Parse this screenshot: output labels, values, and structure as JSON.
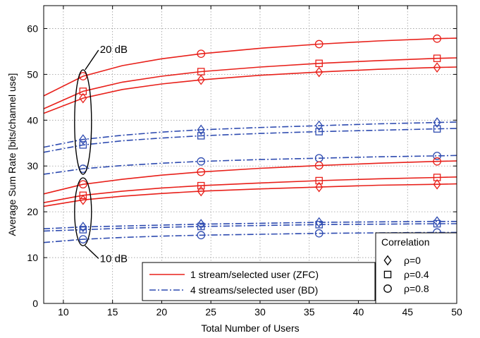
{
  "chart_data": {
    "type": "line",
    "title": "",
    "xlabel": "Total Number of Users",
    "ylabel": "Average Sum Rate [bits/channel use]",
    "xlim": [
      8,
      50
    ],
    "ylim": [
      0,
      65
    ],
    "xticks": [
      10,
      15,
      20,
      25,
      30,
      35,
      40,
      45,
      50
    ],
    "yticks": [
      0,
      10,
      20,
      30,
      40,
      50,
      60
    ],
    "grid": true,
    "colors": {
      "zfc": "#e8201a",
      "bd": "#2e4bb0"
    },
    "marker_x": [
      12,
      24,
      36,
      48
    ],
    "series": [
      {
        "group": "20 dB",
        "scheme": "zfc",
        "correlation": "ρ=0.8",
        "marker": "circle",
        "x": [
          8,
          12,
          16,
          20,
          24,
          30,
          36,
          42,
          48,
          50
        ],
        "y": [
          45.3,
          49.6,
          51.9,
          53.4,
          54.5,
          55.7,
          56.6,
          57.3,
          57.8,
          57.9
        ]
      },
      {
        "group": "20 dB",
        "scheme": "zfc",
        "correlation": "ρ=0.4",
        "marker": "square",
        "x": [
          8,
          12,
          16,
          20,
          24,
          30,
          36,
          42,
          48,
          50
        ],
        "y": [
          42.5,
          46.3,
          48.3,
          49.6,
          50.6,
          51.6,
          52.4,
          53.0,
          53.5,
          53.6
        ]
      },
      {
        "group": "20 dB",
        "scheme": "zfc",
        "correlation": "ρ=0",
        "marker": "diamond",
        "x": [
          8,
          12,
          16,
          20,
          24,
          30,
          36,
          42,
          48,
          50
        ],
        "y": [
          41.5,
          44.8,
          46.7,
          47.9,
          48.8,
          49.8,
          50.5,
          51.1,
          51.5,
          51.6
        ]
      },
      {
        "group": "20 dB",
        "scheme": "bd",
        "correlation": "ρ=0",
        "marker": "diamond",
        "x": [
          8,
          12,
          16,
          20,
          24,
          30,
          36,
          42,
          48,
          50
        ],
        "y": [
          34.1,
          35.8,
          36.7,
          37.4,
          37.9,
          38.4,
          38.8,
          39.2,
          39.5,
          39.6
        ]
      },
      {
        "group": "20 dB",
        "scheme": "bd",
        "correlation": "ρ=0.4",
        "marker": "square",
        "x": [
          8,
          12,
          16,
          20,
          24,
          30,
          36,
          42,
          48,
          50
        ],
        "y": [
          33.0,
          34.6,
          35.5,
          36.1,
          36.6,
          37.1,
          37.5,
          37.8,
          38.1,
          38.2
        ]
      },
      {
        "group": "20 dB",
        "scheme": "bd",
        "correlation": "ρ=0.8",
        "marker": "circle",
        "x": [
          8,
          12,
          16,
          20,
          24,
          30,
          36,
          42,
          48,
          50
        ],
        "y": [
          28.2,
          29.4,
          30.1,
          30.6,
          31.0,
          31.4,
          31.7,
          32.0,
          32.2,
          32.3
        ]
      },
      {
        "group": "10 dB",
        "scheme": "zfc",
        "correlation": "ρ=0.8",
        "marker": "circle",
        "x": [
          8,
          12,
          16,
          20,
          24,
          30,
          36,
          42,
          48,
          50
        ],
        "y": [
          23.9,
          26.0,
          27.1,
          28.0,
          28.7,
          29.5,
          30.1,
          30.6,
          31.0,
          31.1
        ]
      },
      {
        "group": "10 dB",
        "scheme": "zfc",
        "correlation": "ρ=0.4",
        "marker": "square",
        "x": [
          8,
          12,
          16,
          20,
          24,
          30,
          36,
          42,
          48,
          50
        ],
        "y": [
          22.0,
          23.6,
          24.5,
          25.2,
          25.7,
          26.3,
          26.8,
          27.2,
          27.5,
          27.6
        ]
      },
      {
        "group": "10 dB",
        "scheme": "zfc",
        "correlation": "ρ=0",
        "marker": "diamond",
        "x": [
          8,
          12,
          16,
          20,
          24,
          30,
          36,
          42,
          48,
          50
        ],
        "y": [
          21.2,
          22.6,
          23.4,
          24.0,
          24.5,
          25.0,
          25.4,
          25.8,
          26.0,
          26.1
        ]
      },
      {
        "group": "10 dB",
        "scheme": "bd",
        "correlation": "ρ=0",
        "marker": "diamond",
        "x": [
          8,
          12,
          16,
          20,
          24,
          30,
          36,
          42,
          48,
          50
        ],
        "y": [
          16.3,
          16.7,
          16.9,
          17.1,
          17.3,
          17.5,
          17.7,
          17.8,
          17.9,
          17.9
        ]
      },
      {
        "group": "10 dB",
        "scheme": "bd",
        "correlation": "ρ=0.4",
        "marker": "square",
        "x": [
          8,
          12,
          16,
          20,
          24,
          30,
          36,
          42,
          48,
          50
        ],
        "y": [
          15.8,
          16.1,
          16.4,
          16.6,
          16.8,
          17.0,
          17.2,
          17.3,
          17.4,
          17.4
        ]
      },
      {
        "group": "10 dB",
        "scheme": "bd",
        "correlation": "ρ=0.8",
        "marker": "circle",
        "x": [
          8,
          12,
          16,
          20,
          24,
          30,
          36,
          42,
          48,
          50
        ],
        "y": [
          13.3,
          14.0,
          14.4,
          14.7,
          14.9,
          15.1,
          15.3,
          15.4,
          15.5,
          15.5
        ]
      }
    ],
    "annotations": [
      {
        "text": "20 dB",
        "target_x": 12,
        "target_y": 51.0
      },
      {
        "text": "10 dB",
        "target_x": 12,
        "target_y": 13.0
      }
    ],
    "legend_schemes": [
      {
        "label": "1 stream/selected user (ZFC)",
        "scheme": "zfc"
      },
      {
        "label": "4 streams/selected user (BD)",
        "scheme": "bd"
      }
    ],
    "legend_correlation": {
      "title": "Correlation",
      "items": [
        {
          "label": "ρ=0",
          "marker": "diamond"
        },
        {
          "label": "ρ=0.4",
          "marker": "square"
        },
        {
          "label": "ρ=0.8",
          "marker": "circle"
        }
      ]
    }
  }
}
